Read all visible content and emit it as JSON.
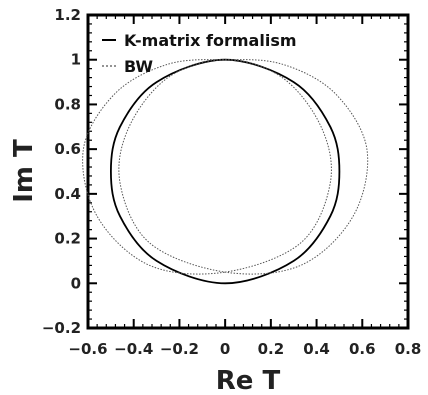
{
  "chart_data": {
    "type": "line",
    "xlabel": "Re T",
    "ylabel": "Im T",
    "xlim": [
      -0.6,
      0.8
    ],
    "ylim": [
      -0.2,
      1.2
    ],
    "x_ticks": [
      "−0.6",
      "−0.4",
      "−0.2",
      "0",
      "0.2",
      "0.4",
      "0.6",
      "0.8"
    ],
    "x_tick_values": [
      -0.6,
      -0.4,
      -0.2,
      0,
      0.2,
      0.4,
      0.6,
      0.8
    ],
    "y_ticks": [
      "−0.2",
      "0",
      "0.2",
      "0.4",
      "0.6",
      "0.8",
      "1",
      "1.2"
    ],
    "y_tick_values": [
      -0.2,
      0,
      0.2,
      0.4,
      0.6,
      0.8,
      1,
      1.2
    ],
    "grid": false,
    "legend_position": "top-right",
    "series": [
      {
        "name": "K-matrix formalism",
        "style": "solid",
        "color": "#000000",
        "points": [
          [
            0.0,
            0.0
          ],
          [
            0.3,
            0.1
          ],
          [
            0.46,
            0.3
          ],
          [
            0.5,
            0.5
          ],
          [
            0.46,
            0.7
          ],
          [
            0.3,
            0.9
          ],
          [
            0.0,
            1.0
          ],
          [
            -0.3,
            0.9
          ],
          [
            -0.46,
            0.7
          ],
          [
            -0.5,
            0.5
          ],
          [
            -0.46,
            0.3
          ],
          [
            -0.3,
            0.1
          ],
          [
            0.0,
            0.0
          ]
        ]
      },
      {
        "name": "BW",
        "style": "dotted",
        "color": "#555555",
        "points": [
          [
            0.0,
            0.05
          ],
          [
            0.33,
            0.18
          ],
          [
            0.46,
            0.45
          ],
          [
            0.42,
            0.7
          ],
          [
            0.25,
            0.92
          ],
          [
            0.0,
            1.0
          ],
          [
            -0.25,
            0.92
          ],
          [
            -0.42,
            0.7
          ],
          [
            -0.46,
            0.45
          ],
          [
            -0.33,
            0.18
          ],
          [
            0.0,
            0.05
          ],
          [
            0.33,
            0.08
          ],
          [
            0.56,
            0.3
          ],
          [
            0.62,
            0.6
          ],
          [
            0.48,
            0.85
          ],
          [
            0.25,
            0.98
          ],
          [
            0.0,
            1.0
          ],
          [
            -0.25,
            0.98
          ],
          [
            -0.48,
            0.85
          ],
          [
            -0.62,
            0.6
          ],
          [
            -0.56,
            0.3
          ],
          [
            -0.33,
            0.08
          ],
          [
            0.0,
            0.05
          ]
        ]
      }
    ]
  }
}
